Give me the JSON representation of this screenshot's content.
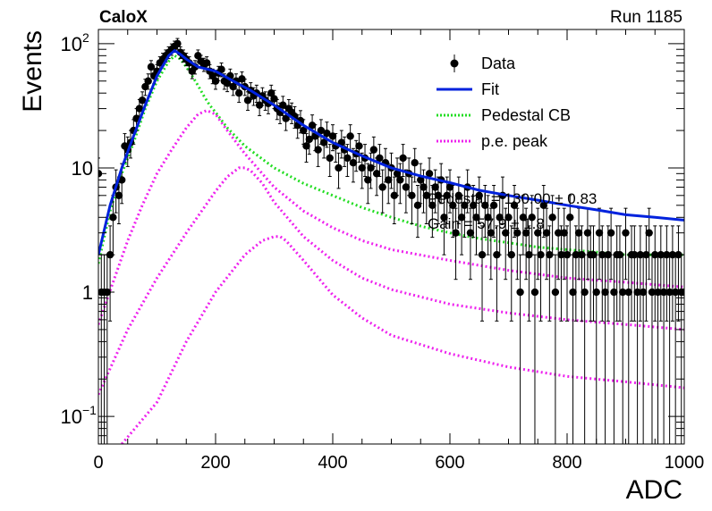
{
  "header": {
    "experiment": "CaloX",
    "run": "Run 1185"
  },
  "chart_data": {
    "type": "scatter",
    "xlabel": "ADC",
    "ylabel": "Events",
    "xlim": [
      0,
      1000
    ],
    "ylim": [
      0.06,
      130
    ],
    "yscale": "log",
    "grid": false,
    "legend_position": "top-right",
    "x_ticks": [
      {
        "value": 0,
        "label": "0"
      },
      {
        "value": 200,
        "label": "200"
      },
      {
        "value": 400,
        "label": "400"
      },
      {
        "value": 600,
        "label": "600"
      },
      {
        "value": 800,
        "label": "800"
      },
      {
        "value": 1000,
        "label": "1000"
      }
    ],
    "y_ticks": [
      {
        "value": 0.1,
        "base": "10",
        "exp": "−1"
      },
      {
        "value": 1,
        "base": "1",
        "exp": ""
      },
      {
        "value": 10,
        "base": "10",
        "exp": ""
      },
      {
        "value": 100,
        "base": "10",
        "exp": "2"
      }
    ],
    "legend": [
      {
        "label": "Data",
        "style": "marker",
        "color": "#000000"
      },
      {
        "label": "Fit",
        "style": "solid",
        "color": "#0022dd"
      },
      {
        "label": "Pedestal CB",
        "style": "dotted",
        "color": "#22dd22"
      },
      {
        "label": "p.e. peak",
        "style": "dotted",
        "color": "#ee22ee"
      }
    ],
    "annotations": [
      "Pedestal = 130.00 ± 0.83",
      "Gain = 57.9 ± 1.8"
    ],
    "data": {
      "name": "Data",
      "color": "#000000",
      "x": [
        0,
        5,
        10,
        15,
        20,
        25,
        30,
        35,
        40,
        45,
        50,
        55,
        60,
        65,
        70,
        75,
        80,
        85,
        90,
        95,
        100,
        105,
        110,
        115,
        120,
        125,
        130,
        135,
        140,
        145,
        150,
        155,
        160,
        165,
        170,
        175,
        180,
        185,
        190,
        195,
        200,
        205,
        210,
        215,
        220,
        225,
        230,
        235,
        240,
        245,
        250,
        255,
        260,
        265,
        270,
        275,
        280,
        285,
        290,
        295,
        300,
        305,
        310,
        315,
        320,
        325,
        330,
        335,
        340,
        345,
        350,
        355,
        360,
        365,
        370,
        375,
        380,
        385,
        390,
        395,
        400,
        405,
        410,
        415,
        420,
        425,
        430,
        435,
        440,
        445,
        450,
        455,
        460,
        465,
        470,
        475,
        480,
        485,
        490,
        495,
        500,
        505,
        510,
        515,
        520,
        525,
        530,
        535,
        540,
        545,
        550,
        555,
        560,
        565,
        570,
        575,
        580,
        585,
        590,
        595,
        600,
        605,
        610,
        615,
        620,
        625,
        630,
        635,
        640,
        645,
        650,
        655,
        660,
        665,
        670,
        675,
        680,
        685,
        690,
        695,
        700,
        705,
        710,
        715,
        720,
        725,
        730,
        735,
        740,
        745,
        750,
        755,
        760,
        765,
        770,
        775,
        780,
        785,
        790,
        795,
        800,
        805,
        810,
        815,
        820,
        825,
        830,
        835,
        840,
        845,
        850,
        855,
        860,
        865,
        870,
        875,
        880,
        885,
        890,
        895,
        900,
        905,
        910,
        915,
        920,
        925,
        930,
        935,
        940,
        945,
        950,
        955,
        960,
        965,
        970,
        975,
        980,
        985,
        990,
        995,
        1000
      ],
      "y": [
        9,
        1,
        1,
        1,
        2,
        4,
        7,
        6,
        8,
        15,
        14,
        16,
        20,
        25,
        30,
        35,
        45,
        50,
        65,
        55,
        60,
        70,
        75,
        80,
        85,
        90,
        95,
        100,
        85,
        80,
        75,
        70,
        60,
        65,
        80,
        72,
        68,
        70,
        60,
        55,
        50,
        58,
        62,
        50,
        48,
        55,
        45,
        50,
        40,
        52,
        45,
        35,
        42,
        38,
        40,
        32,
        38,
        35,
        33,
        40,
        36,
        30,
        28,
        32,
        25,
        30,
        28,
        26,
        22,
        24,
        20,
        15,
        17,
        22,
        18,
        14,
        20,
        16,
        19,
        12,
        18,
        15,
        10,
        16,
        14,
        12,
        18,
        11,
        13,
        15,
        10,
        12,
        8,
        10,
        14,
        9,
        12,
        7,
        11,
        8,
        10,
        6,
        9,
        8,
        12,
        7,
        9,
        6,
        11,
        5,
        8,
        7,
        6,
        9,
        5,
        7,
        6,
        8,
        4,
        6,
        7,
        5,
        3,
        6,
        4,
        5,
        7,
        3,
        5,
        4,
        6,
        2,
        5,
        4,
        3,
        5,
        2,
        4,
        6,
        3,
        4,
        2,
        5,
        3,
        1,
        4,
        3,
        2,
        4,
        1,
        3,
        2,
        5,
        3,
        2,
        4,
        1,
        3,
        2,
        3,
        2,
        4,
        1,
        2,
        3,
        2,
        1,
        3,
        2,
        2,
        1,
        3,
        2,
        1,
        2,
        3,
        1,
        2,
        2,
        1,
        3,
        1,
        2,
        2,
        1,
        2,
        1,
        2,
        3,
        1,
        2,
        1,
        2,
        1,
        2,
        1,
        2,
        1,
        2,
        1,
        1
      ]
    },
    "fit": {
      "name": "Fit",
      "color": "#0022dd",
      "x": [
        0,
        20,
        40,
        60,
        80,
        100,
        120,
        130,
        140,
        150,
        170,
        200,
        230,
        260,
        300,
        350,
        400,
        450,
        500,
        550,
        600,
        650,
        700,
        750,
        800,
        850,
        900,
        950,
        1000
      ],
      "y": [
        2,
        5,
        10,
        18,
        32,
        55,
        80,
        88,
        82,
        75,
        65,
        60,
        50,
        42,
        32,
        22,
        16,
        12.5,
        10,
        8.6,
        7.6,
        6.6,
        6,
        5.5,
        5,
        4.6,
        4.2,
        4,
        3.8
      ]
    },
    "pedestal": {
      "name": "Pedestal CB",
      "color": "#22dd22",
      "x": [
        0,
        20,
        40,
        60,
        80,
        100,
        120,
        130,
        140,
        150,
        160,
        170,
        180,
        190,
        200,
        220,
        250,
        300,
        350,
        400,
        450,
        500,
        550,
        600,
        650,
        700,
        750,
        800,
        850,
        900,
        950,
        1000
      ],
      "y": [
        1.7,
        4.5,
        9,
        16,
        30,
        50,
        72,
        80,
        75,
        65,
        55,
        46,
        38,
        32,
        28,
        21,
        15,
        10,
        7.5,
        6,
        4.8,
        4,
        3.4,
        3,
        2.7,
        2.5,
        2.3,
        2.2,
        2.1,
        2,
        2,
        2
      ]
    },
    "pe_peaks": [
      {
        "name": "p.e. peak 1",
        "color": "#ee22ee",
        "x": [
          0,
          25,
          50,
          75,
          100,
          125,
          150,
          170,
          185,
          200,
          220,
          250,
          300,
          350,
          400,
          450,
          500,
          600,
          700,
          800,
          900,
          1000
        ],
        "y": [
          0.55,
          1.2,
          2.6,
          5,
          9,
          14,
          21,
          27,
          29,
          27,
          20,
          13,
          7,
          4.5,
          3.3,
          2.6,
          2.2,
          1.8,
          1.5,
          1.3,
          1.2,
          1.1
        ]
      },
      {
        "name": "p.e. peak 2",
        "color": "#ee22ee",
        "x": [
          0,
          50,
          100,
          150,
          200,
          220,
          240,
          250,
          260,
          280,
          300,
          350,
          400,
          450,
          500,
          600,
          700,
          800,
          900,
          1000
        ],
        "y": [
          0.15,
          0.5,
          1.3,
          3,
          6.5,
          8.5,
          10,
          10,
          9.5,
          7.5,
          5.3,
          2.8,
          1.8,
          1.3,
          1.05,
          0.8,
          0.68,
          0.6,
          0.55,
          0.5
        ]
      },
      {
        "name": "p.e. peak 3",
        "color": "#ee22ee",
        "x": [
          40,
          100,
          150,
          200,
          250,
          280,
          300,
          310,
          320,
          350,
          400,
          450,
          500,
          600,
          700,
          800,
          900,
          1000
        ],
        "y": [
          0.05,
          0.13,
          0.4,
          1,
          2,
          2.6,
          2.8,
          2.8,
          2.6,
          1.8,
          0.95,
          0.62,
          0.45,
          0.32,
          0.25,
          0.21,
          0.19,
          0.17
        ]
      }
    ]
  }
}
